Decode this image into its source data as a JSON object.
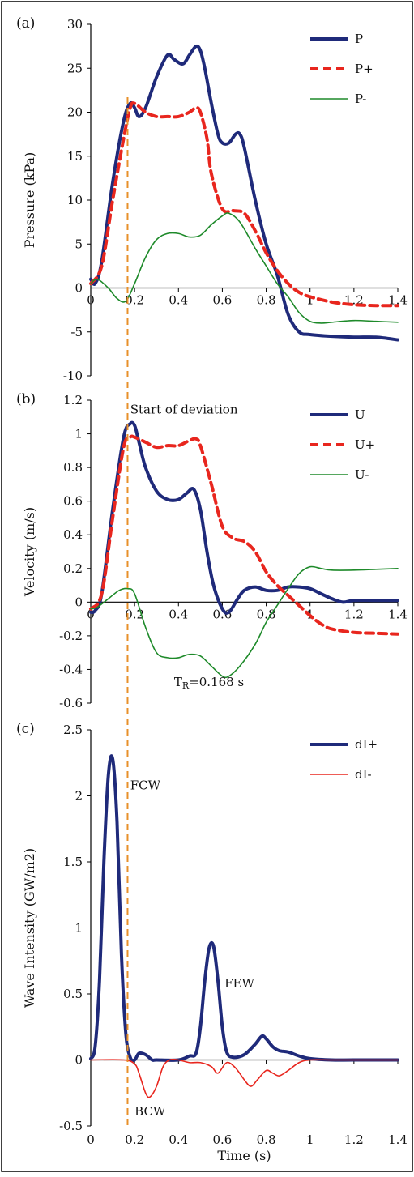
{
  "figure": {
    "xlabel": "Time (s)",
    "marker_label": ""
  },
  "chart_data": [
    {
      "type": "line",
      "panel_label": "(a)",
      "ylabel": "Pressure (kPa)",
      "xlim": [
        0,
        1.4
      ],
      "ylim": [
        -10,
        30
      ],
      "xticks": [
        "0",
        "0.2",
        "0.4",
        "0.6",
        "0.8",
        "1",
        "1.2",
        "1.4"
      ],
      "yticks": [
        "-10",
        "-5",
        "0",
        "5",
        "10",
        "15",
        "20",
        "25",
        "30"
      ],
      "legend_position": "top-right",
      "annotations": [],
      "series": [
        {
          "name": "P",
          "color": "#1f2a7a",
          "style": "solid-thick",
          "x": [
            0,
            0.02,
            0.05,
            0.1,
            0.15,
            0.18,
            0.2,
            0.22,
            0.25,
            0.3,
            0.35,
            0.38,
            0.42,
            0.45,
            0.48,
            0.5,
            0.52,
            0.55,
            0.58,
            0.6,
            0.63,
            0.66,
            0.68,
            0.7,
            0.75,
            0.8,
            0.85,
            0.9,
            0.95,
            1.0,
            1.1,
            1.2,
            1.3,
            1.4
          ],
          "y": [
            1,
            0.5,
            3,
            12,
            19,
            21,
            20.5,
            19.5,
            20.5,
            24,
            26.5,
            26,
            25.5,
            26.5,
            27.5,
            27,
            25,
            21,
            17.5,
            16.5,
            16.5,
            17.5,
            17.5,
            16,
            10,
            5,
            1.5,
            -3,
            -5,
            -5.3,
            -5.5,
            -5.6,
            -5.6,
            -5.9
          ]
        },
        {
          "name": "P+",
          "color": "#e8261e",
          "style": "dashed-thick",
          "x": [
            0,
            0.05,
            0.1,
            0.15,
            0.18,
            0.2,
            0.25,
            0.3,
            0.35,
            0.4,
            0.45,
            0.48,
            0.5,
            0.53,
            0.55,
            0.6,
            0.65,
            0.7,
            0.75,
            0.8,
            0.85,
            0.9,
            0.95,
            1.0,
            1.1,
            1.2,
            1.3,
            1.4
          ],
          "y": [
            0.5,
            2.5,
            10,
            17,
            20.5,
            21,
            20,
            19.5,
            19.5,
            19.5,
            20,
            20.5,
            20,
            17,
            13,
            9,
            8.8,
            8.5,
            6.5,
            4,
            2,
            0.5,
            -0.5,
            -1,
            -1.6,
            -1.9,
            -2,
            -2
          ]
        },
        {
          "name": "P-",
          "color": "#1e8a2a",
          "style": "solid-thin",
          "x": [
            0,
            0.03,
            0.08,
            0.12,
            0.16,
            0.2,
            0.25,
            0.3,
            0.35,
            0.4,
            0.45,
            0.5,
            0.55,
            0.6,
            0.63,
            0.68,
            0.75,
            0.8,
            0.85,
            0.9,
            0.95,
            1.0,
            1.05,
            1.1,
            1.2,
            1.3,
            1.4
          ],
          "y": [
            0.5,
            1,
            0,
            -1.2,
            -1.5,
            0.5,
            3.5,
            5.5,
            6.2,
            6.2,
            5.8,
            6,
            7.2,
            8.2,
            8.5,
            7.5,
            4.5,
            2.5,
            0.5,
            -1,
            -2.8,
            -3.8,
            -4,
            -3.9,
            -3.7,
            -3.8,
            -3.9
          ]
        }
      ]
    },
    {
      "type": "line",
      "panel_label": "(b)",
      "ylabel": "Velocity (m/s)",
      "xlim": [
        0,
        1.4
      ],
      "ylim": [
        -0.6,
        1.2
      ],
      "xticks": [
        "0",
        "0.2",
        "0.4",
        "0.6",
        "0.8",
        "1",
        "1.2",
        "1.4"
      ],
      "yticks": [
        "-0.6",
        "-0.4",
        "-0.2",
        "0",
        "0.2",
        "0.4",
        "0.6",
        "0.8",
        "1",
        "1.2"
      ],
      "legend_position": "top-right",
      "annotations": [
        {
          "text": "Start of deviation",
          "x": 0.18,
          "y": 1.12
        },
        {
          "text": "T",
          "sub": "R",
          "tail": "=0.168 s",
          "x": 0.38,
          "y": -0.5
        }
      ],
      "series": [
        {
          "name": "U",
          "color": "#1f2a7a",
          "style": "solid-thick",
          "x": [
            0,
            0.02,
            0.05,
            0.1,
            0.15,
            0.18,
            0.2,
            0.22,
            0.25,
            0.3,
            0.35,
            0.4,
            0.44,
            0.47,
            0.5,
            0.53,
            0.56,
            0.6,
            0.63,
            0.67,
            0.7,
            0.75,
            0.8,
            0.85,
            0.9,
            0.95,
            1.0,
            1.05,
            1.1,
            1.15,
            1.2,
            1.3,
            1.4
          ],
          "y": [
            -0.06,
            -0.05,
            0.05,
            0.55,
            0.98,
            1.06,
            1.05,
            0.95,
            0.8,
            0.66,
            0.61,
            0.61,
            0.65,
            0.67,
            0.55,
            0.3,
            0.1,
            -0.04,
            -0.06,
            0.02,
            0.07,
            0.09,
            0.07,
            0.07,
            0.09,
            0.09,
            0.08,
            0.05,
            0.02,
            0.0,
            0.01,
            0.01,
            0.01
          ]
        },
        {
          "name": "U+",
          "color": "#e8261e",
          "style": "dashed-thick",
          "x": [
            0,
            0.05,
            0.1,
            0.15,
            0.18,
            0.2,
            0.25,
            0.3,
            0.35,
            0.4,
            0.45,
            0.48,
            0.5,
            0.55,
            0.6,
            0.65,
            0.7,
            0.75,
            0.8,
            0.85,
            0.9,
            0.95,
            1.0,
            1.05,
            1.1,
            1.2,
            1.3,
            1.4
          ],
          "y": [
            -0.04,
            0.05,
            0.5,
            0.92,
            0.98,
            0.98,
            0.95,
            0.92,
            0.93,
            0.93,
            0.96,
            0.97,
            0.93,
            0.7,
            0.45,
            0.38,
            0.36,
            0.3,
            0.18,
            0.1,
            0.04,
            -0.02,
            -0.08,
            -0.13,
            -0.16,
            -0.18,
            -0.185,
            -0.19
          ]
        },
        {
          "name": "U-",
          "color": "#1e8a2a",
          "style": "solid-thin",
          "x": [
            0,
            0.03,
            0.08,
            0.13,
            0.17,
            0.2,
            0.25,
            0.3,
            0.35,
            0.4,
            0.45,
            0.5,
            0.55,
            0.6,
            0.63,
            0.68,
            0.75,
            0.8,
            0.85,
            0.9,
            0.95,
            1.0,
            1.05,
            1.1,
            1.2,
            1.3,
            1.4
          ],
          "y": [
            -0.04,
            -0.03,
            0.02,
            0.07,
            0.08,
            0.05,
            -0.15,
            -0.3,
            -0.33,
            -0.33,
            -0.31,
            -0.32,
            -0.38,
            -0.44,
            -0.44,
            -0.38,
            -0.25,
            -0.12,
            -0.02,
            0.08,
            0.17,
            0.21,
            0.2,
            0.19,
            0.19,
            0.195,
            0.2
          ]
        }
      ]
    },
    {
      "type": "line",
      "panel_label": "(c)",
      "ylabel": "Wave Intensity (GW/m2)",
      "xlim": [
        0,
        1.4
      ],
      "ylim": [
        -0.5,
        2.5
      ],
      "xticks": [
        "0",
        "0.2",
        "0.4",
        "0.6",
        "0.8",
        "1",
        "1.2",
        "1.4"
      ],
      "yticks": [
        "-0.5",
        "0",
        "0.5",
        "1",
        "1.5",
        "2",
        "2.5"
      ],
      "legend_position": "top-right",
      "annotations": [
        {
          "text": "FCW",
          "x": 0.18,
          "y": 2.05
        },
        {
          "text": "FEW",
          "x": 0.61,
          "y": 0.55
        },
        {
          "text": "BCW",
          "x": 0.2,
          "y": -0.42
        }
      ],
      "series": [
        {
          "name": "dI+",
          "color": "#1f2a7a",
          "style": "solid-thick",
          "x": [
            0,
            0.02,
            0.04,
            0.06,
            0.08,
            0.1,
            0.12,
            0.14,
            0.16,
            0.18,
            0.2,
            0.22,
            0.25,
            0.28,
            0.3,
            0.4,
            0.45,
            0.48,
            0.5,
            0.52,
            0.54,
            0.56,
            0.58,
            0.6,
            0.62,
            0.65,
            0.7,
            0.75,
            0.78,
            0.8,
            0.83,
            0.86,
            0.9,
            0.95,
            1.0,
            1.1,
            1.2,
            1.4
          ],
          "y": [
            0.01,
            0.1,
            0.6,
            1.5,
            2.15,
            2.28,
            1.8,
            0.8,
            0.2,
            0.02,
            0.0,
            0.05,
            0.04,
            0.0,
            0.0,
            0.0,
            0.03,
            0.05,
            0.25,
            0.6,
            0.85,
            0.86,
            0.6,
            0.25,
            0.06,
            0.02,
            0.04,
            0.12,
            0.18,
            0.16,
            0.1,
            0.07,
            0.06,
            0.03,
            0.01,
            0.0,
            0.0,
            0.0
          ]
        },
        {
          "name": "dI-",
          "color": "#e8261e",
          "style": "solid-thin",
          "x": [
            0,
            0.15,
            0.2,
            0.22,
            0.25,
            0.27,
            0.3,
            0.33,
            0.36,
            0.4,
            0.45,
            0.5,
            0.55,
            0.58,
            0.62,
            0.66,
            0.7,
            0.73,
            0.76,
            0.8,
            0.83,
            0.86,
            0.9,
            0.95,
            1.0,
            1.1,
            1.2,
            1.4
          ],
          "y": [
            0.0,
            0.0,
            -0.03,
            -0.1,
            -0.25,
            -0.28,
            -0.2,
            -0.05,
            0.0,
            0.0,
            -0.02,
            -0.02,
            -0.05,
            -0.1,
            -0.02,
            -0.06,
            -0.15,
            -0.2,
            -0.15,
            -0.08,
            -0.1,
            -0.12,
            -0.08,
            -0.02,
            0.0,
            0.0,
            0.0,
            0.0
          ]
        }
      ]
    }
  ]
}
